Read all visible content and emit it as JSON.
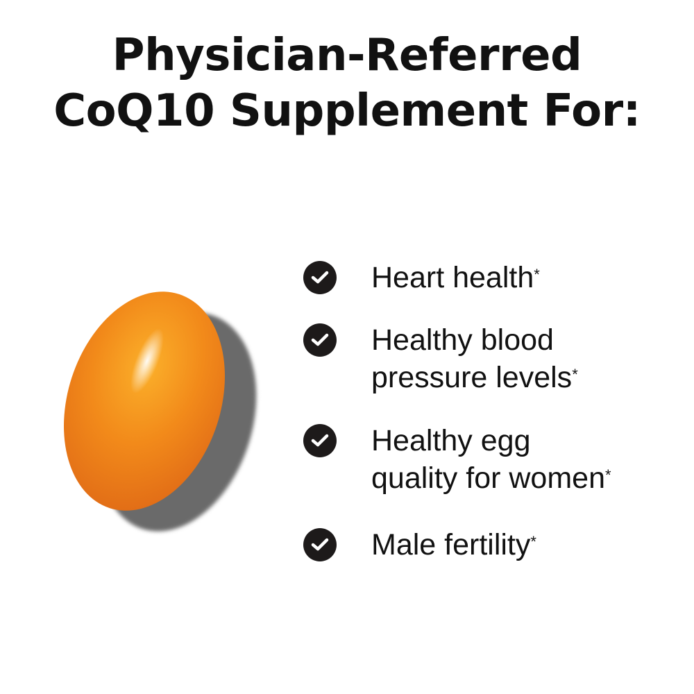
{
  "title": {
    "line1": "Physician-Referred",
    "line2": "CoQ10 Supplement For:"
  },
  "product_image": {
    "icon": "orange-softgel-capsule",
    "colors": {
      "capsule": "#f08a1c",
      "shadow": "#6b6b6b"
    }
  },
  "benefits": [
    {
      "lines": [
        "Heart health"
      ],
      "mark": "*"
    },
    {
      "lines": [
        "Healthy blood",
        "pressure levels"
      ],
      "mark": "*"
    },
    {
      "lines": [
        "Healthy egg",
        "quality for women"
      ],
      "mark": "*"
    },
    {
      "lines": [
        "Male fertility"
      ],
      "mark": "*"
    }
  ],
  "check_icon_color": "#1d1a1a"
}
